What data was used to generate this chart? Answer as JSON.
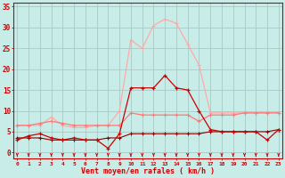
{
  "x": [
    0,
    1,
    2,
    3,
    4,
    5,
    6,
    7,
    8,
    9,
    10,
    11,
    12,
    13,
    14,
    15,
    16,
    17,
    18,
    19,
    20,
    21,
    22,
    23
  ],
  "series_light_pink": [
    6.5,
    6.5,
    6.5,
    8.5,
    6.5,
    6.0,
    6.0,
    6.5,
    6.5,
    10.0,
    27.0,
    25.0,
    30.5,
    32.0,
    31.0,
    26.0,
    21.0,
    9.5,
    9.5,
    9.5,
    9.5,
    9.5,
    9.5,
    9.5
  ],
  "series_medium_pink": [
    6.5,
    6.5,
    7.0,
    7.5,
    7.0,
    6.5,
    6.5,
    6.5,
    6.5,
    6.5,
    9.5,
    9.0,
    9.0,
    9.0,
    9.0,
    9.0,
    7.5,
    9.0,
    9.0,
    9.0,
    9.5,
    9.5,
    9.5,
    9.5
  ],
  "series_dark_red": [
    3.0,
    4.0,
    4.5,
    3.5,
    3.0,
    3.5,
    3.0,
    3.0,
    1.0,
    4.5,
    15.5,
    15.5,
    15.5,
    18.5,
    15.5,
    15.0,
    10.0,
    5.5,
    5.0,
    5.0,
    5.0,
    5.0,
    3.0,
    5.5
  ],
  "series_flat_red": [
    3.5,
    3.5,
    3.5,
    3.0,
    3.0,
    3.0,
    3.0,
    3.0,
    3.5,
    3.5,
    4.5,
    4.5,
    4.5,
    4.5,
    4.5,
    4.5,
    4.5,
    5.0,
    5.0,
    5.0,
    5.0,
    5.0,
    5.0,
    5.5
  ],
  "bg_color": "#c8ede8",
  "grid_color": "#aac8c4",
  "line_color_light": "#ffaaaa",
  "line_color_medium": "#ff7777",
  "line_color_dark": "#cc0000",
  "line_color_flat": "#880000",
  "xlabel": "Vent moyen/en rafales ( km/h )",
  "ylabel_ticks": [
    0,
    5,
    10,
    15,
    20,
    25,
    30,
    35
  ],
  "ylim": [
    -1.5,
    36
  ],
  "xlim": [
    -0.3,
    23.3
  ],
  "axis_color": "#cc0000",
  "tick_color": "#cc0000",
  "xlabel_color": "#cc0000"
}
